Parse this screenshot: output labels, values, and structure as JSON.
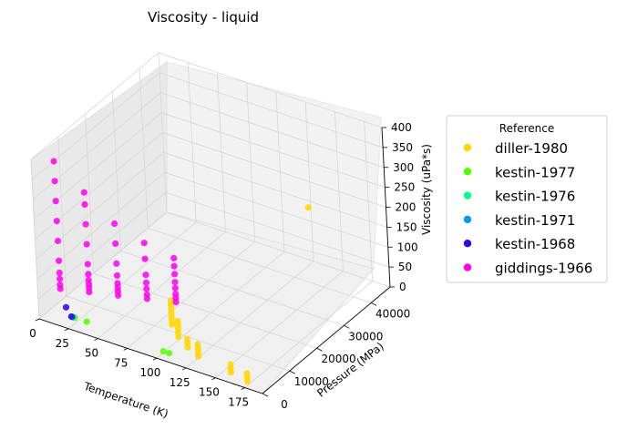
{
  "chart_data": {
    "type": "scatter",
    "title": "Viscosity - liquid",
    "xlabel": "Temperature (K)",
    "ylabel": "Pressure (MPa)",
    "zlabel": "Viscosity (uPa*s)",
    "xlim": [
      0,
      190
    ],
    "ylim": [
      0,
      47000
    ],
    "zlim": [
      0,
      400
    ],
    "xticks": [
      "0",
      "25",
      "50",
      "75",
      "100",
      "125",
      "150",
      "175"
    ],
    "yticks": [
      "0",
      "10000",
      "20000",
      "30000",
      "40000"
    ],
    "zticks": [
      "0",
      "50",
      "100",
      "150",
      "200",
      "250",
      "300",
      "350",
      "400"
    ],
    "legend": {
      "title": "Reference",
      "position": "right"
    },
    "series": [
      {
        "name": "diller-1980",
        "color": "#ffd700",
        "points": [
          [
            100,
            6000,
            50
          ],
          [
            100,
            6000,
            60
          ],
          [
            100,
            6000,
            70
          ],
          [
            100,
            6000,
            80
          ],
          [
            100,
            6000,
            90
          ],
          [
            100,
            6000,
            100
          ],
          [
            100,
            6000,
            110
          ],
          [
            110,
            4000,
            40
          ],
          [
            110,
            4000,
            50
          ],
          [
            110,
            4000,
            60
          ],
          [
            110,
            4000,
            70
          ],
          [
            110,
            4000,
            80
          ],
          [
            120,
            3000,
            30
          ],
          [
            120,
            3000,
            40
          ],
          [
            120,
            3000,
            50
          ],
          [
            130,
            2500,
            20
          ],
          [
            130,
            2500,
            30
          ],
          [
            130,
            2500,
            40
          ],
          [
            130,
            2500,
            50
          ],
          [
            160,
            1500,
            15
          ],
          [
            160,
            1500,
            25
          ],
          [
            160,
            1500,
            35
          ],
          [
            175,
            1000,
            10
          ],
          [
            175,
            1000,
            20
          ],
          [
            175,
            1000,
            30
          ],
          [
            140,
            40000,
            190
          ]
        ]
      },
      {
        "name": "kestin-1977",
        "color": "#55ff00",
        "points": [
          [
            30,
            400,
            30
          ],
          [
            40,
            400,
            30
          ],
          [
            105,
            400,
            20
          ],
          [
            110,
            400,
            20
          ]
        ]
      },
      {
        "name": "kestin-1976",
        "color": "#00ff88",
        "points": [
          [
            28,
            400,
            30
          ]
        ]
      },
      {
        "name": "kestin-1971",
        "color": "#0099ee",
        "points": [
          [
            28,
            400,
            30
          ]
        ]
      },
      {
        "name": "kestin-1968",
        "color": "#3300ee",
        "points": [
          [
            14,
            4000,
            20
          ],
          [
            27,
            400,
            30
          ]
        ]
      },
      {
        "name": "giddings-1966",
        "color": "#ff00ee",
        "points": [
          [
            0,
            8000,
            30
          ],
          [
            0,
            8000,
            40
          ],
          [
            0,
            8000,
            55
          ],
          [
            0,
            8000,
            70
          ],
          [
            0,
            8000,
            100
          ],
          [
            0,
            8000,
            150
          ],
          [
            0,
            8000,
            200
          ],
          [
            0,
            8000,
            250
          ],
          [
            0,
            8000,
            300
          ],
          [
            0,
            8000,
            350
          ],
          [
            20,
            10000,
            30
          ],
          [
            20,
            10000,
            40
          ],
          [
            20,
            10000,
            50
          ],
          [
            20,
            10000,
            60
          ],
          [
            20,
            10000,
            75
          ],
          [
            20,
            10000,
            100
          ],
          [
            20,
            10000,
            150
          ],
          [
            20,
            10000,
            200
          ],
          [
            20,
            10000,
            250
          ],
          [
            20,
            10000,
            280
          ],
          [
            40,
            12000,
            30
          ],
          [
            40,
            12000,
            40
          ],
          [
            40,
            12000,
            50
          ],
          [
            40,
            12000,
            60
          ],
          [
            40,
            12000,
            80
          ],
          [
            40,
            12000,
            110
          ],
          [
            40,
            12000,
            160
          ],
          [
            40,
            12000,
            210
          ],
          [
            60,
            14000,
            30
          ],
          [
            60,
            14000,
            40
          ],
          [
            60,
            14000,
            55
          ],
          [
            60,
            14000,
            70
          ],
          [
            60,
            14000,
            90
          ],
          [
            60,
            14000,
            130
          ],
          [
            60,
            14000,
            170
          ],
          [
            80,
            16000,
            30
          ],
          [
            80,
            16000,
            40
          ],
          [
            80,
            16000,
            50
          ],
          [
            80,
            16000,
            65
          ],
          [
            80,
            16000,
            80
          ],
          [
            80,
            16000,
            100
          ],
          [
            80,
            16000,
            120
          ],
          [
            80,
            16000,
            140
          ]
        ]
      }
    ]
  }
}
